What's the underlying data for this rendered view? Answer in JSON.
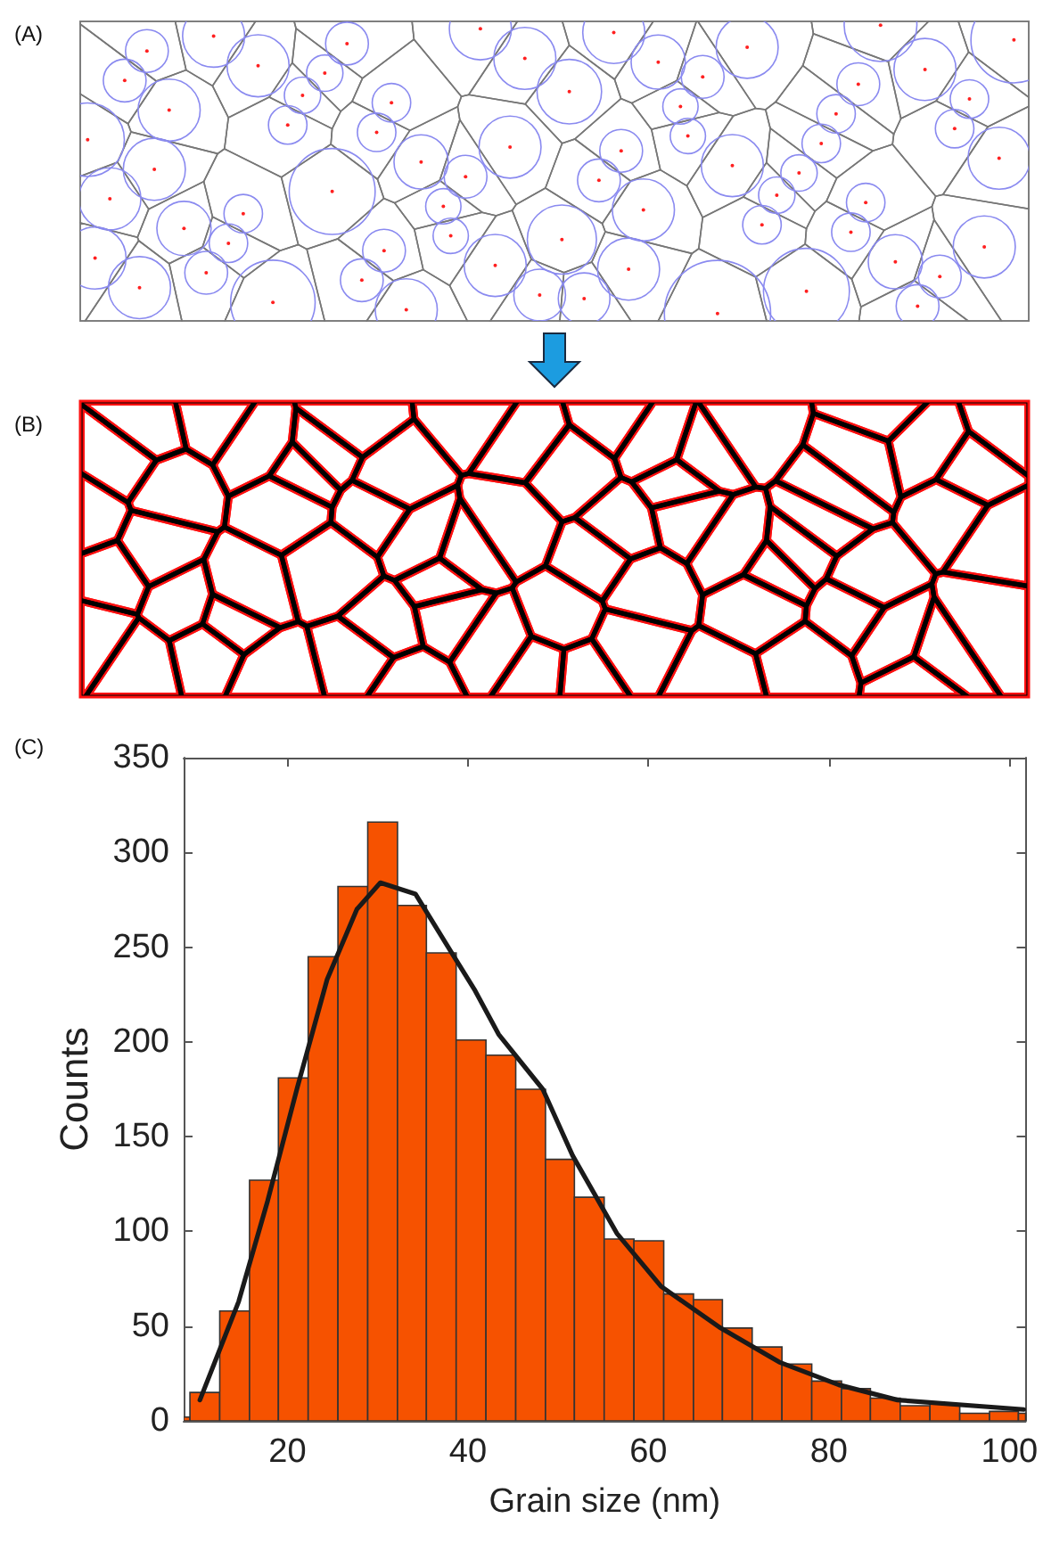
{
  "chart_data": {
    "type": "histogram",
    "annotations": [
      "(A)",
      "(B)",
      "(C)"
    ],
    "xlabel": "Grain size (nm)",
    "ylabel": "Counts",
    "bins": [
      8.5,
      9.2,
      12.5,
      15.8,
      19.0,
      22.3,
      25.6,
      28.9,
      32.2,
      35.4,
      38.7,
      42.0,
      45.3,
      48.6,
      51.8,
      55.1,
      58.4,
      61.7,
      65.0,
      68.2,
      71.5,
      74.8,
      78.1,
      81.4,
      84.6,
      87.9,
      91.2,
      94.5,
      97.8,
      101.0,
      101.8
    ],
    "values": [
      2,
      15,
      58,
      127,
      181,
      245,
      282,
      316,
      272,
      247,
      201,
      193,
      175,
      138,
      118,
      96,
      95,
      67,
      64,
      49,
      39,
      30,
      21,
      17,
      12,
      8,
      9,
      4,
      5,
      4
    ],
    "color": "#f65200",
    "series": [
      {
        "type": "line",
        "color": "#1a1a1a",
        "x": [
          10.3,
          14.6,
          17.8,
          21.1,
          24.4,
          27.7,
          30.3,
          34.2,
          38.2,
          40.8,
          43.4,
          48.3,
          51.6,
          56.5,
          61.4,
          68.0,
          74.5,
          81.1,
          87.6,
          101.6
        ],
        "values": [
          11,
          63,
          116,
          176,
          233,
          270,
          284,
          278,
          247,
          227,
          204,
          175,
          140,
          99,
          71,
          49,
          31,
          19,
          11,
          6
        ]
      }
    ],
    "marker": "none",
    "line_style": "solid",
    "xlim": [
      8.5,
      101.8
    ],
    "xticks": [
      20,
      40,
      60,
      80,
      100
    ],
    "ylim": [
      0,
      350
    ],
    "yticks": [
      0,
      50,
      100,
      150,
      200,
      250,
      300,
      350
    ],
    "grid": false
  }
}
